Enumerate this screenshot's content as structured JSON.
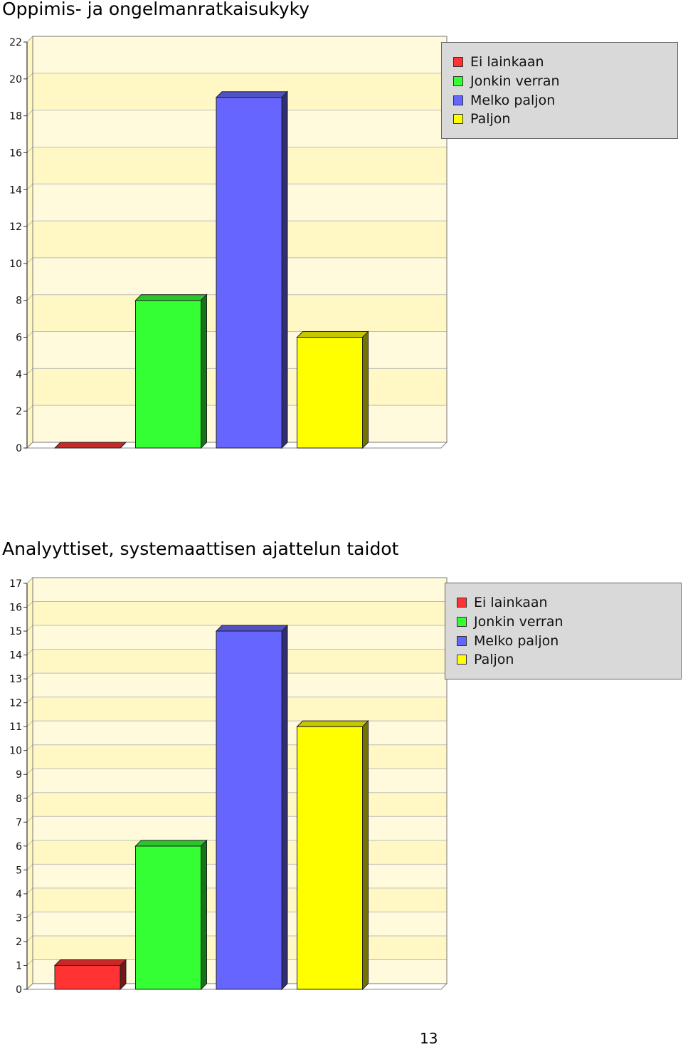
{
  "page_number": "13",
  "chart_data": [
    {
      "type": "bar",
      "title": "Oppimis- ja ongelmanratkaisukyky",
      "xlabel": "",
      "ylabel": "",
      "ylim": [
        0,
        22
      ],
      "yticks": [
        "0",
        "2",
        "4",
        "6",
        "8",
        "10",
        "12",
        "14",
        "16",
        "18",
        "20",
        "22"
      ],
      "categories": [
        "Ei lainkaan",
        "Jonkin verran",
        "Melko paljon",
        "Paljon"
      ],
      "values": [
        0,
        8,
        19,
        6
      ],
      "colors": [
        "#ff3333",
        "#33ff33",
        "#6666ff",
        "#ffff00"
      ],
      "legend": "top-right",
      "grid": true
    },
    {
      "type": "bar",
      "title": "Analyyttiset, systemaattisen ajattelun taidot",
      "xlabel": "",
      "ylabel": "",
      "ylim": [
        0,
        17
      ],
      "yticks": [
        "0",
        "1",
        "2",
        "3",
        "4",
        "5",
        "6",
        "7",
        "8",
        "9",
        "10",
        "11",
        "12",
        "13",
        "14",
        "15",
        "16",
        "17"
      ],
      "categories": [
        "Ei lainkaan",
        "Jonkin verran",
        "Melko paljon",
        "Paljon"
      ],
      "values": [
        1,
        6,
        15,
        11
      ],
      "colors": [
        "#ff3333",
        "#33ff33",
        "#6666ff",
        "#ffff00"
      ],
      "legend": "top-right",
      "grid": true
    }
  ]
}
